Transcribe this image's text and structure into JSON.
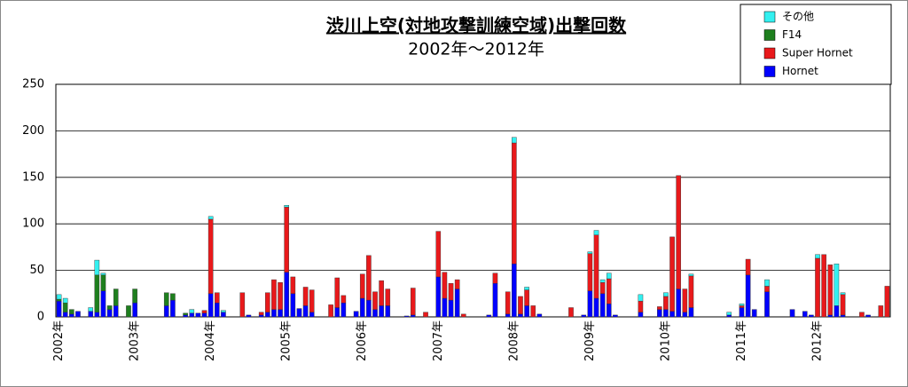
{
  "chart_data": {
    "type": "stacked_bar",
    "title": "渋川上空(対地攻撃訓練空域)出撃回数",
    "subtitle": "2002年～2012年",
    "categories": [
      "2002年",
      null,
      null,
      null,
      null,
      null,
      null,
      null,
      null,
      null,
      null,
      null,
      "2003年",
      null,
      null,
      null,
      null,
      null,
      null,
      null,
      null,
      null,
      null,
      null,
      "2004年",
      null,
      null,
      null,
      null,
      null,
      null,
      null,
      null,
      null,
      null,
      null,
      "2005年",
      null,
      null,
      null,
      null,
      null,
      null,
      null,
      null,
      null,
      null,
      null,
      "2006年",
      null,
      null,
      null,
      null,
      null,
      null,
      null,
      null,
      null,
      null,
      null,
      "2007年",
      null,
      null,
      null,
      null,
      null,
      null,
      null,
      null,
      null,
      null,
      null,
      "2008年",
      null,
      null,
      null,
      null,
      null,
      null,
      null,
      null,
      null,
      null,
      null,
      "2009年",
      null,
      null,
      null,
      null,
      null,
      null,
      null,
      null,
      null,
      null,
      null,
      "2010年",
      null,
      null,
      null,
      null,
      null,
      null,
      null,
      null,
      null,
      null,
      null,
      "2011年",
      null,
      null,
      null,
      null,
      null,
      null,
      null,
      null,
      null,
      null,
      null,
      "2012年",
      null,
      null,
      null,
      null,
      null,
      null,
      null,
      null,
      null,
      null,
      null
    ],
    "series": [
      {
        "name": "Hornet",
        "color": "#0000ff",
        "values": [
          17,
          5,
          3,
          6,
          0,
          6,
          5,
          28,
          8,
          12,
          0,
          0,
          15,
          0,
          0,
          0,
          0,
          12,
          18,
          0,
          2,
          4,
          4,
          4,
          25,
          15,
          5,
          0,
          0,
          0,
          2,
          0,
          2,
          5,
          8,
          8,
          48,
          25,
          9,
          12,
          5,
          0,
          0,
          0,
          10,
          15,
          0,
          6,
          20,
          18,
          8,
          12,
          12,
          0,
          0,
          1,
          2,
          0,
          0,
          0,
          43,
          20,
          18,
          30,
          0,
          0,
          0,
          0,
          2,
          36,
          0,
          3,
          57,
          3,
          12,
          0,
          3,
          0,
          0,
          0,
          0,
          0,
          0,
          2,
          28,
          20,
          25,
          14,
          2,
          0,
          0,
          0,
          5,
          0,
          0,
          8,
          8,
          6,
          30,
          5,
          10,
          0,
          0,
          0,
          0,
          0,
          2,
          0,
          10,
          45,
          8,
          0,
          27,
          0,
          0,
          0,
          8,
          0,
          6,
          2,
          0,
          0,
          2,
          12,
          2,
          0,
          0,
          0,
          2,
          0,
          0,
          0
        ]
      },
      {
        "name": "Super Hornet",
        "color": "#e8191b",
        "values": [
          0,
          0,
          0,
          0,
          0,
          0,
          0,
          0,
          0,
          0,
          0,
          0,
          0,
          0,
          0,
          0,
          0,
          0,
          0,
          0,
          0,
          0,
          0,
          3,
          80,
          11,
          0,
          0,
          0,
          26,
          0,
          0,
          3,
          21,
          32,
          29,
          70,
          18,
          0,
          20,
          24,
          0,
          0,
          13,
          32,
          8,
          0,
          0,
          26,
          48,
          19,
          27,
          18,
          0,
          0,
          0,
          29,
          0,
          5,
          0,
          49,
          28,
          18,
          10,
          3,
          0,
          0,
          0,
          0,
          11,
          0,
          24,
          130,
          19,
          17,
          12,
          0,
          0,
          0,
          0,
          0,
          10,
          0,
          0,
          40,
          68,
          12,
          27,
          0,
          0,
          0,
          0,
          12,
          0,
          0,
          3,
          14,
          80,
          122,
          25,
          34,
          0,
          0,
          0,
          0,
          0,
          0,
          0,
          2,
          17,
          0,
          0,
          6,
          0,
          0,
          0,
          0,
          0,
          0,
          0,
          63,
          67,
          54,
          0,
          22,
          0,
          0,
          5,
          0,
          0,
          12,
          33
        ]
      },
      {
        "name": "F14",
        "color": "#1e7f1e",
        "values": [
          2,
          10,
          5,
          0,
          0,
          0,
          40,
          17,
          4,
          18,
          0,
          12,
          15,
          0,
          0,
          0,
          0,
          14,
          7,
          0,
          2,
          0,
          0,
          0,
          0,
          0,
          0,
          0,
          0,
          0,
          0,
          0,
          0,
          0,
          0,
          0,
          0,
          0,
          0,
          0,
          0,
          0,
          0,
          0,
          0,
          0,
          0,
          0,
          0,
          0,
          0,
          0,
          0,
          0,
          0,
          0,
          0,
          0,
          0,
          0,
          0,
          0,
          0,
          0,
          0,
          0,
          0,
          0,
          0,
          0,
          0,
          0,
          0,
          0,
          0,
          0,
          0,
          0,
          0,
          0,
          0,
          0,
          0,
          0,
          0,
          0,
          0,
          0,
          0,
          0,
          0,
          0,
          0,
          0,
          0,
          0,
          0,
          0,
          0,
          0,
          0,
          0,
          0,
          0,
          0,
          0,
          0,
          0,
          0,
          0,
          0,
          0,
          0,
          0,
          0,
          0,
          0,
          0,
          0,
          0,
          0,
          0,
          0,
          0,
          0,
          0,
          0,
          0,
          0,
          0,
          0,
          0
        ]
      },
      {
        "name": "その他",
        "color": "#33f0f0",
        "values": [
          5,
          5,
          0,
          0,
          0,
          4,
          16,
          2,
          0,
          0,
          0,
          0,
          0,
          0,
          0,
          0,
          0,
          0,
          0,
          0,
          0,
          4,
          0,
          0,
          3,
          0,
          2,
          0,
          0,
          0,
          0,
          0,
          0,
          0,
          0,
          0,
          2,
          0,
          0,
          0,
          0,
          0,
          0,
          0,
          0,
          0,
          0,
          0,
          0,
          0,
          0,
          0,
          0,
          0,
          0,
          0,
          0,
          0,
          0,
          0,
          0,
          0,
          0,
          0,
          0,
          0,
          0,
          0,
          0,
          0,
          0,
          0,
          6,
          0,
          3,
          0,
          0,
          0,
          0,
          0,
          0,
          0,
          0,
          0,
          2,
          5,
          3,
          6,
          0,
          0,
          0,
          0,
          7,
          0,
          0,
          0,
          4,
          0,
          0,
          0,
          2,
          0,
          0,
          0,
          0,
          0,
          3,
          0,
          2,
          0,
          0,
          0,
          7,
          0,
          0,
          0,
          0,
          0,
          0,
          0,
          4,
          0,
          0,
          45,
          2,
          0,
          0,
          0,
          0,
          0,
          0,
          0
        ]
      }
    ],
    "ylim": [
      0,
      250
    ],
    "yticks": [
      0,
      50,
      100,
      150,
      200,
      250
    ],
    "grid": true,
    "legend": "top-right"
  }
}
